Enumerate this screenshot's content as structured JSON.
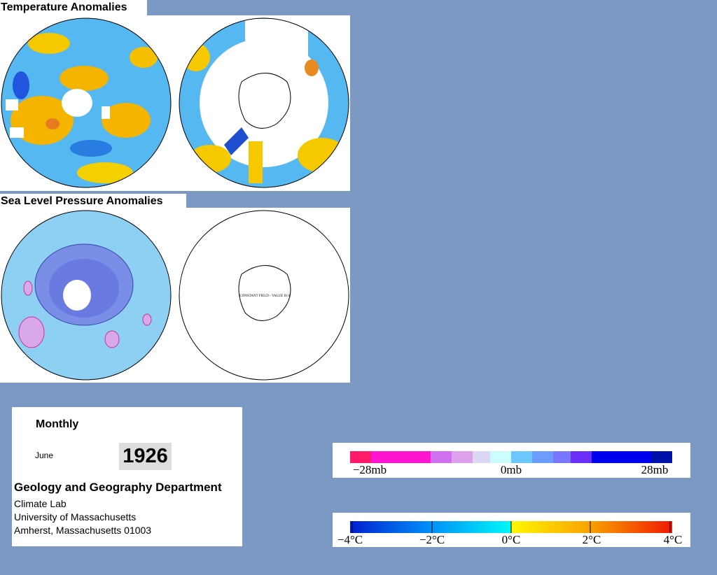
{
  "panels": [
    {
      "title": "Temperature Anomalies"
    },
    {
      "title": "Sea Level Pressure Anomalies",
      "note": "CONSTANT FIELD - VALUE IS 0"
    }
  ],
  "info": {
    "period": "Monthly",
    "month": "June",
    "year": "1926",
    "department": "Geology and Geography Department",
    "lines": [
      "Climate Lab",
      "University of Massachusetts",
      "Amherst, Massachusetts 01003"
    ]
  },
  "legends": [
    {
      "labels": [
        "−28mb",
        "0mb",
        "28mb"
      ]
    },
    {
      "labels": [
        "−4°C",
        "−2°C",
        "0°C",
        "2°C",
        "4°C"
      ]
    }
  ]
}
